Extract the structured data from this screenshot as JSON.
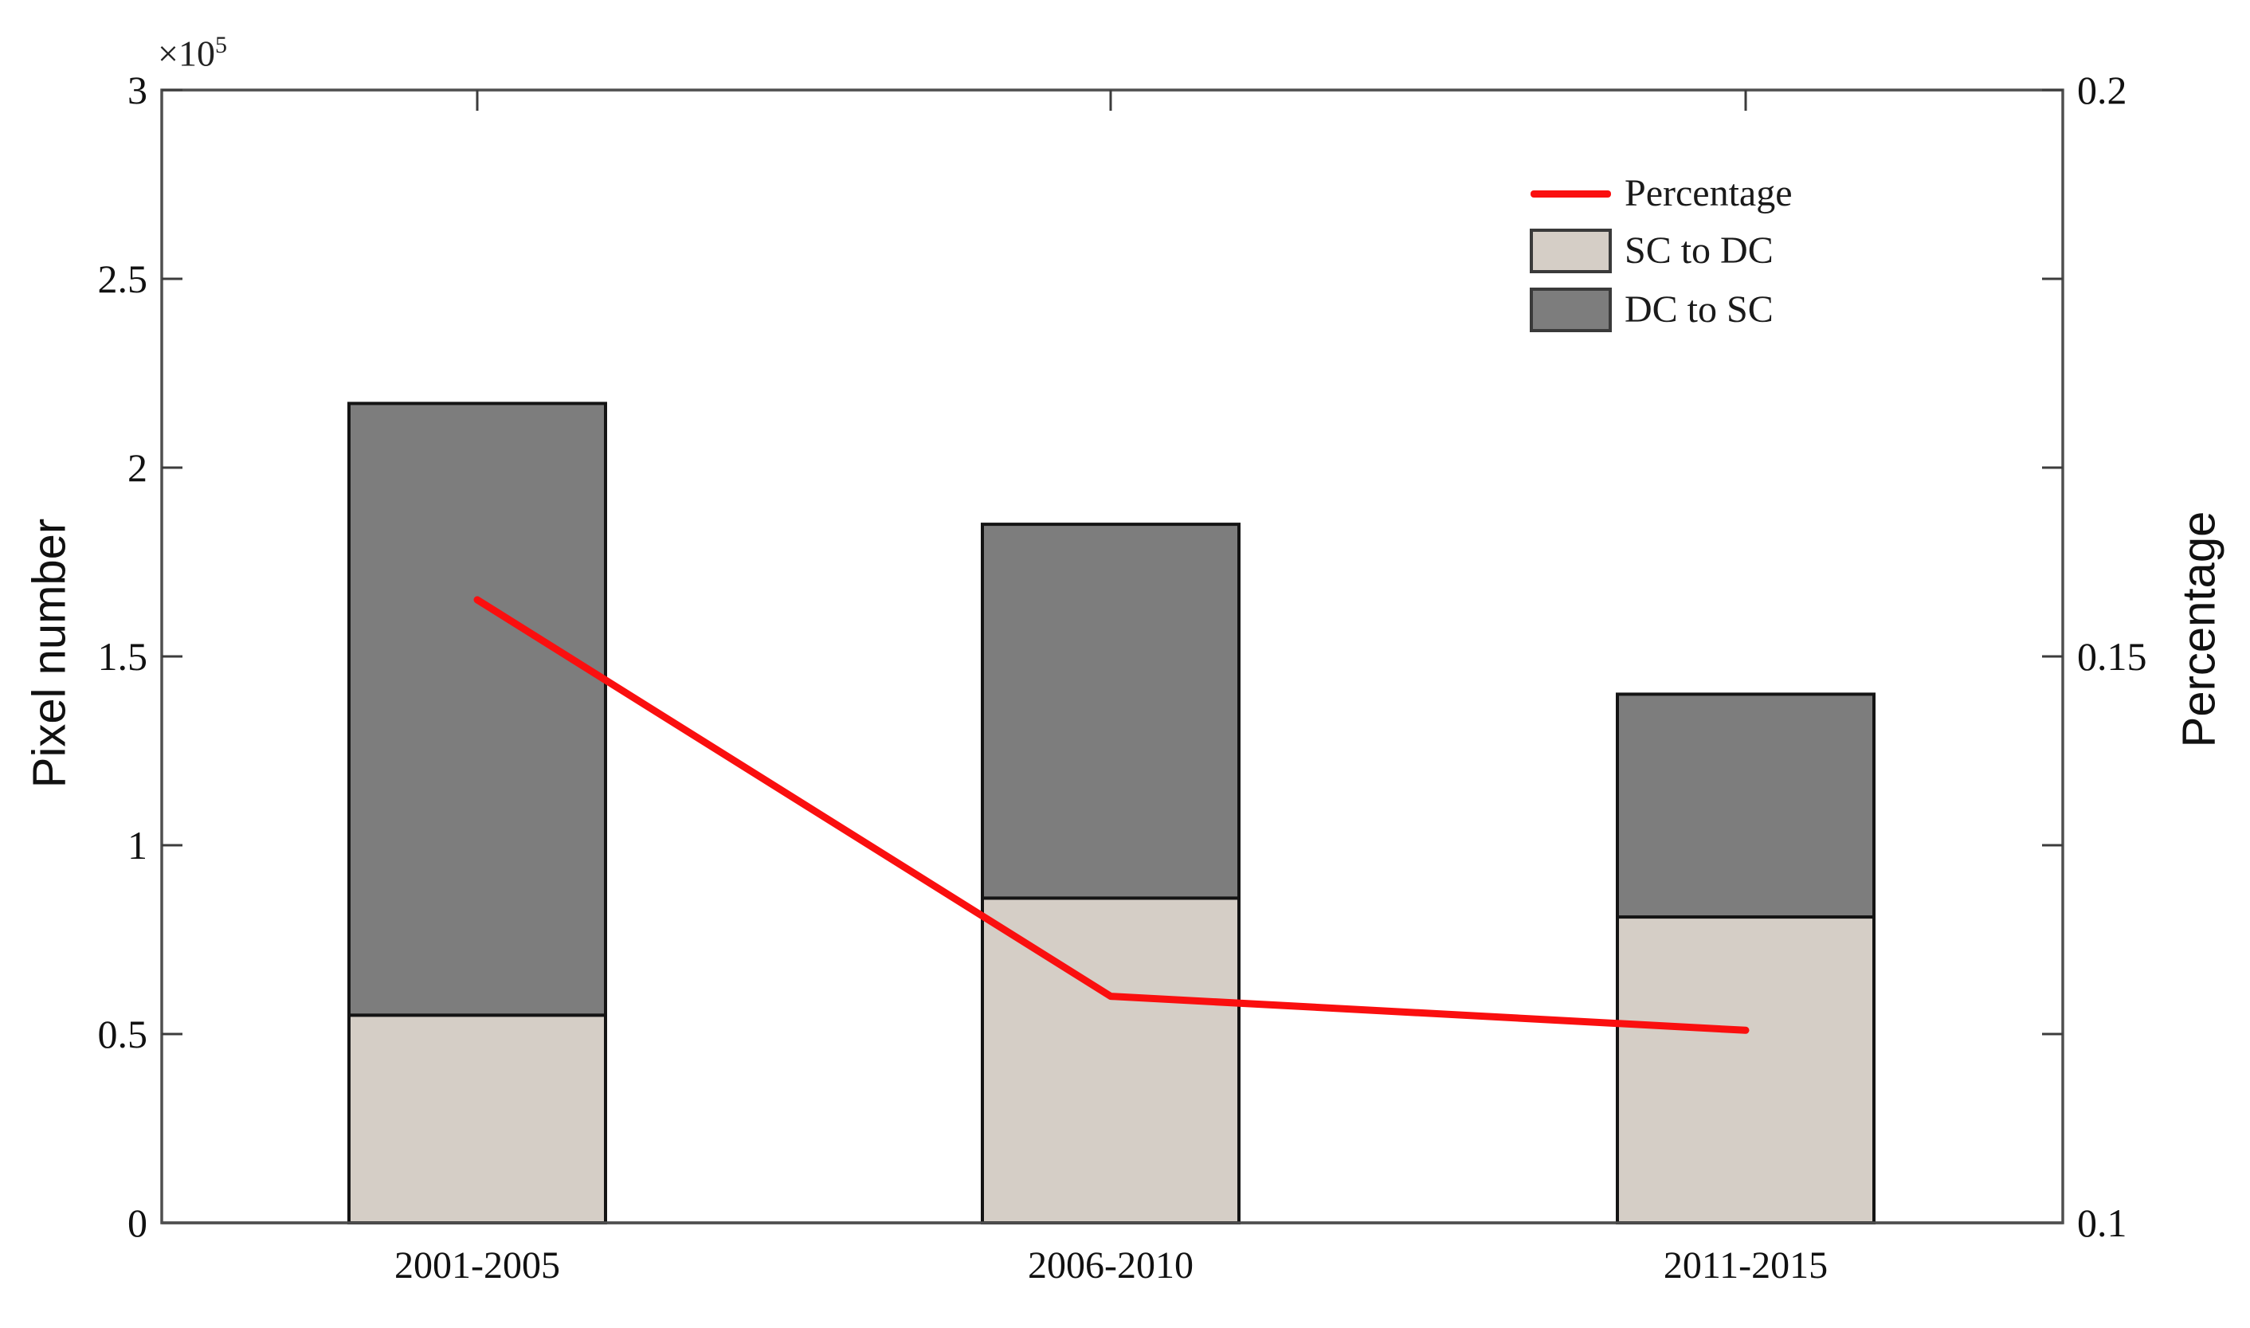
{
  "figure": {
    "offset_label": "×10",
    "offset_exponent": "5"
  },
  "axes": {
    "left": {
      "label": "Pixel number",
      "tick_labels": [
        "0",
        "0.5",
        "1",
        "1.5",
        "2",
        "2.5",
        "3"
      ],
      "tick_values": [
        0,
        0.5,
        1,
        1.5,
        2,
        2.5,
        3
      ],
      "range": [
        0,
        3
      ]
    },
    "right": {
      "label": "Percentage",
      "tick_labels": [
        "0.1",
        "0.15",
        "0.2"
      ],
      "tick_values": [
        0.1,
        0.15,
        0.2
      ],
      "range": [
        0.1,
        0.2
      ]
    },
    "x": {
      "tick_labels": [
        "2001-2005",
        "2006-2010",
        "2011-2015"
      ]
    }
  },
  "legend": {
    "items": [
      {
        "label": "Percentage",
        "swatch": "line",
        "color": "#fa0f0f"
      },
      {
        "label": "SC to DC",
        "swatch": "rect",
        "color": "#d5cec6"
      },
      {
        "label": "DC to SC",
        "swatch": "rect",
        "color": "#7d7d7d"
      }
    ]
  },
  "chart_data": {
    "type": "combo-stacked-bar-line",
    "title": "",
    "categories": [
      "2001-2005",
      "2006-2010",
      "2011-2015"
    ],
    "series": [
      {
        "name": "SC to DC",
        "type": "bar",
        "axis": "left",
        "values": [
          0.55,
          0.86,
          0.81
        ],
        "unit": "x10^5 pixels",
        "color": "#d5cec6",
        "edge_color": "#141414"
      },
      {
        "name": "DC to SC",
        "type": "bar",
        "axis": "left",
        "values": [
          1.62,
          0.99,
          0.59
        ],
        "unit": "x10^5 pixels",
        "color": "#7d7d7d",
        "edge_color": "#141414"
      },
      {
        "name": "Percentage",
        "type": "line",
        "axis": "right",
        "values": [
          0.155,
          0.12,
          0.117
        ],
        "color": "#fa0f0f"
      }
    ],
    "stacked_totals": [
      2.17,
      1.85,
      1.4
    ],
    "xlabel": "",
    "ylabel_left": "Pixel number",
    "ylabel_right": "Percentage",
    "left_ylim": [
      0,
      3
    ],
    "left_multiplier": "1e5",
    "right_ylim": [
      0.1,
      0.2
    ],
    "grid": false,
    "legend_position": "upper-right-inside",
    "spine_color": "#4f4f4f"
  }
}
